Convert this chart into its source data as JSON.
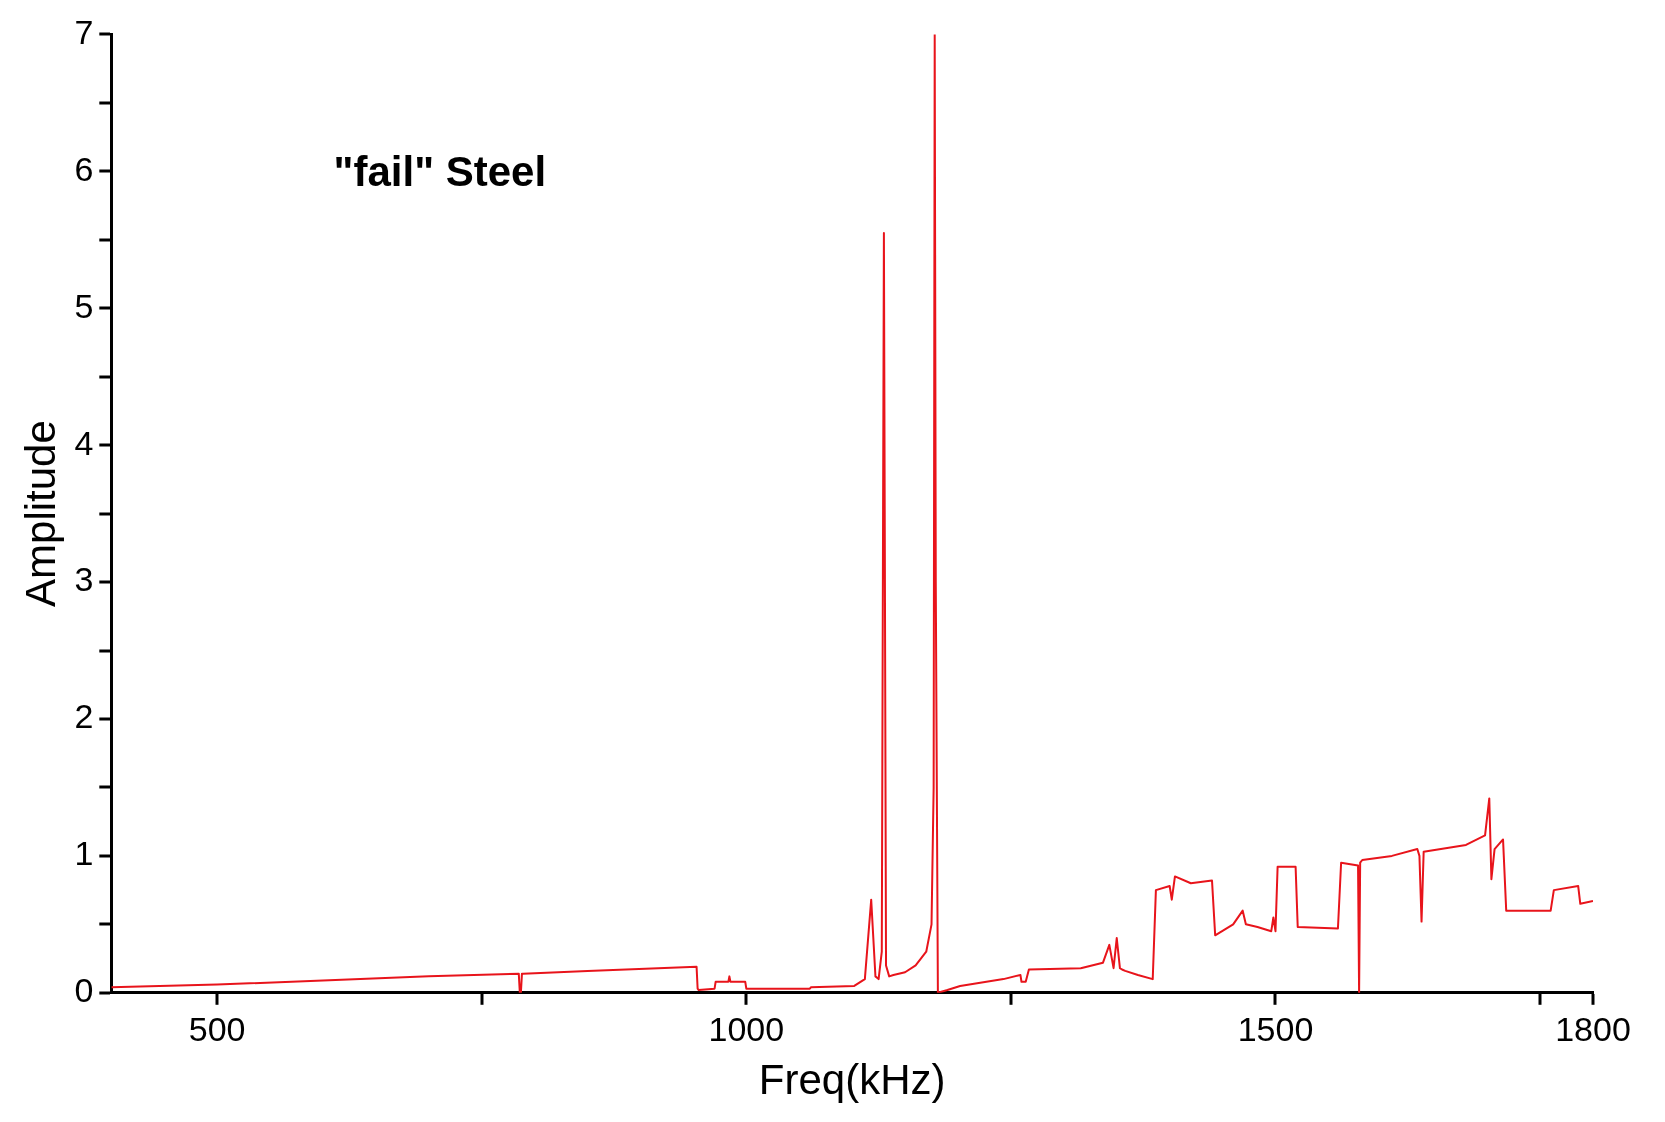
{
  "chart_data": {
    "type": "line",
    "xlabel": "Freq(kHz)",
    "ylabel": "Amplitude",
    "annotations": [
      "\"fail\" Steel"
    ],
    "xlim": [
      400,
      1800
    ],
    "xticks": [
      500,
      {
        "value": 750,
        "label": null
      },
      1000,
      {
        "value": 1250,
        "label": null
      },
      1500,
      {
        "value": 1750,
        "label": null
      },
      1800
    ],
    "ylim": [
      0,
      7
    ],
    "yticks": [
      0,
      {
        "value": 0.5,
        "label": null
      },
      1,
      {
        "value": 1.5,
        "label": null
      },
      2,
      {
        "value": 2.5,
        "label": null
      },
      3,
      {
        "value": 3.5,
        "label": null
      },
      4,
      {
        "value": 4.5,
        "label": null
      },
      5,
      {
        "value": 5.5,
        "label": null
      },
      6,
      {
        "value": 6.5,
        "label": null
      },
      7
    ],
    "grid": false,
    "legend": false,
    "marker": "none",
    "line_style": "solid",
    "series": [
      {
        "color": "#e8141b",
        "x": [
          400,
          500,
          600,
          700,
          785,
          786,
          787,
          788,
          789,
          850,
          953,
          954,
          955,
          970,
          971,
          983,
          984,
          985,
          999,
          1000,
          1001,
          1060,
          1061,
          1102,
          1112,
          1118,
          1122,
          1125,
          1128,
          1130,
          1132,
          1135,
          1139,
          1150,
          1160,
          1170,
          1175,
          1177,
          1178,
          1179,
          1181,
          1190,
          1202,
          1243,
          1259,
          1260,
          1264,
          1267,
          1316,
          1337,
          1343,
          1347,
          1350,
          1353,
          1355,
          1358,
          1370,
          1384,
          1387,
          1400,
          1402,
          1405,
          1420,
          1440,
          1443,
          1460,
          1469,
          1472,
          1483,
          1496,
          1498,
          1500,
          1502,
          1519,
          1521,
          1559,
          1562,
          1578,
          1579,
          1580,
          1582,
          1610,
          1634,
          1636,
          1638,
          1640,
          1680,
          1698,
          1702,
          1704,
          1707,
          1715,
          1718,
          1740,
          1760,
          1763,
          1786,
          1788,
          1800
        ],
        "values": [
          0.04,
          0.06,
          0.09,
          0.12,
          0.14,
          0.0,
          0.0,
          0.14,
          0.14,
          0.16,
          0.19,
          0.03,
          0.02,
          0.03,
          0.08,
          0.08,
          0.12,
          0.08,
          0.08,
          0.03,
          0.03,
          0.03,
          0.04,
          0.05,
          0.1,
          0.68,
          0.12,
          0.1,
          0.3,
          5.55,
          0.2,
          0.12,
          0.13,
          0.15,
          0.2,
          0.3,
          0.5,
          1.5,
          7.0,
          3.0,
          0.0,
          0.02,
          0.05,
          0.1,
          0.13,
          0.08,
          0.08,
          0.17,
          0.18,
          0.22,
          0.35,
          0.18,
          0.4,
          0.18,
          0.17,
          0.16,
          0.13,
          0.1,
          0.75,
          0.78,
          0.68,
          0.85,
          0.8,
          0.82,
          0.42,
          0.5,
          0.6,
          0.5,
          0.48,
          0.45,
          0.55,
          0.45,
          0.92,
          0.92,
          0.48,
          0.47,
          0.95,
          0.93,
          0.0,
          0.95,
          0.97,
          1.0,
          1.05,
          1.0,
          0.52,
          1.03,
          1.08,
          1.15,
          1.42,
          0.83,
          1.05,
          1.12,
          0.6,
          0.6,
          0.6,
          0.75,
          0.78,
          0.65,
          0.67
        ]
      }
    ]
  }
}
